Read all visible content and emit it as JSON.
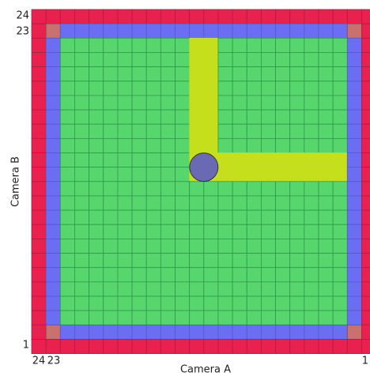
{
  "x_axis": {
    "label": "Camera A",
    "ticks": [
      "24",
      "23",
      "1"
    ]
  },
  "y_axis": {
    "label": "Camera B",
    "ticks": [
      "24",
      "23",
      "1"
    ]
  }
}
